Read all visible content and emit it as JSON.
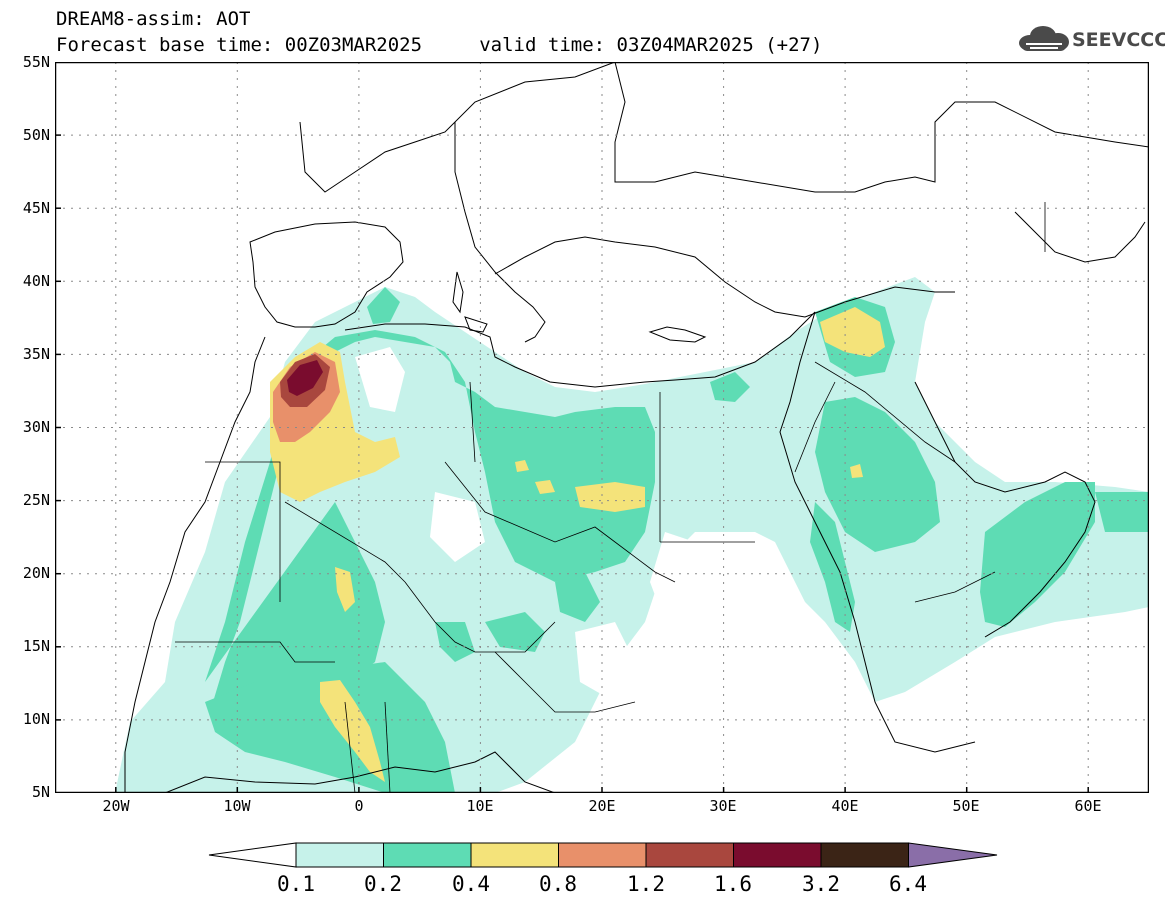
{
  "header": {
    "line1": "DREAM8-assim: AOT",
    "line2": "Forecast base time: 00Z03MAR2025     valid time: 03Z04MAR2025 (+27)",
    "logo_text": "SEEVCCC",
    "logo_icon": "cloud-logo-icon"
  },
  "map": {
    "field": "AOT",
    "lat_labels": [
      "55N",
      "50N",
      "45N",
      "40N",
      "35N",
      "30N",
      "25N",
      "20N",
      "15N",
      "10N",
      "5N"
    ],
    "lon_labels": [
      "20W",
      "10W",
      "0",
      "10E",
      "20E",
      "30E",
      "40E",
      "50E",
      "60E"
    ],
    "lon_range": [
      -25,
      65
    ],
    "lat_range": [
      5,
      55
    ],
    "gridlines": "dotted",
    "colors": {
      "0.1-0.2": "#c6f2ea",
      "0.2-0.4": "#5edcb4",
      "0.4-0.8": "#f4e37a",
      "0.8-1.2": "#e8906a",
      "1.2-1.6": "#a9473e",
      "1.6-3.2": "#7a0c2e",
      "3.2-6.4": "#3b2416",
      ">6.4": "#8a6ea8"
    }
  },
  "colorbar": {
    "labels": [
      "0.1",
      "0.2",
      "0.4",
      "0.8",
      "1.2",
      "1.6",
      "3.2",
      "6.4"
    ],
    "colors": [
      "#ffffff",
      "#c6f2ea",
      "#5edcb4",
      "#f4e37a",
      "#e8906a",
      "#a9473e",
      "#7a0c2e",
      "#3b2416",
      "#8a6ea8"
    ]
  }
}
